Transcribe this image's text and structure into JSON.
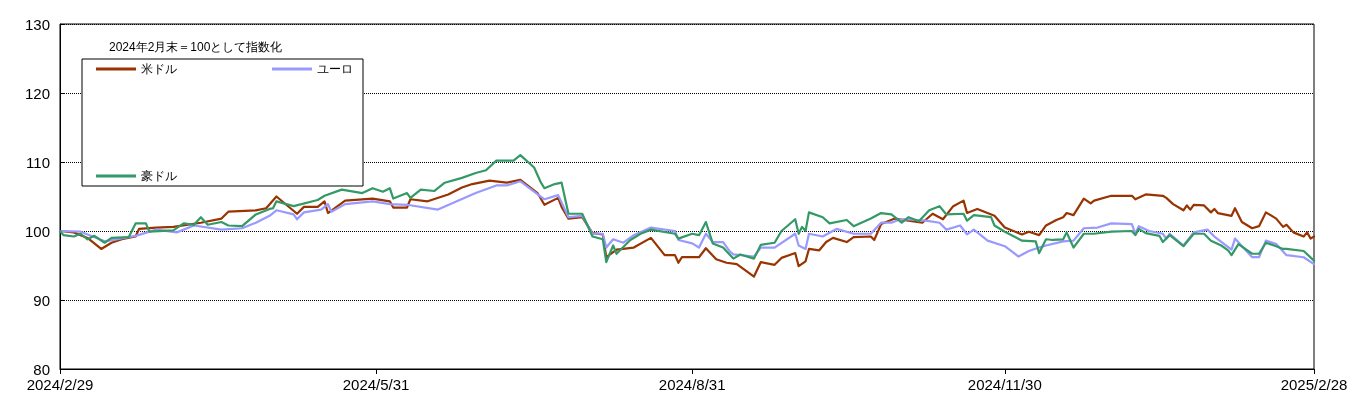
{
  "chart_data": {
    "type": "line",
    "legend_title": "2024年2月末＝100として指数化",
    "legend": "top left",
    "grid": "y",
    "marker": "none",
    "line_style": "solid",
    "xlim": [
      "2024-02-29",
      "2025-02-28"
    ],
    "xticks": [
      {
        "value": "2024-02-29",
        "label": "2024/2/29"
      },
      {
        "value": "2024-05-31",
        "label": "2024/5/31"
      },
      {
        "value": "2024-08-31",
        "label": "2024/8/31"
      },
      {
        "value": "2024-11-30",
        "label": "2024/11/30"
      },
      {
        "value": "2025-02-28",
        "label": "2025/2/28"
      }
    ],
    "ylim": [
      80,
      130
    ],
    "yticks": [
      80,
      90,
      100,
      110,
      120,
      130
    ],
    "series": [
      {
        "name": "米ドル",
        "color": "#993300",
        "x": [
          "2024-02-29",
          "2024-03-04",
          "2024-03-08",
          "2024-03-12",
          "2024-03-15",
          "2024-03-18",
          "2024-03-22",
          "2024-03-23",
          "2024-03-28",
          "2024-04-02",
          "2024-04-10",
          "2024-04-16",
          "2024-04-18",
          "2024-04-26",
          "2024-04-29",
          "2024-05-02",
          "2024-05-08",
          "2024-05-10",
          "2024-05-14",
          "2024-05-16",
          "2024-05-17",
          "2024-05-22",
          "2024-05-30",
          "2024-06-04",
          "2024-06-05",
          "2024-06-09",
          "2024-06-10",
          "2024-06-15",
          "2024-06-21",
          "2024-06-25",
          "2024-06-28",
          "2024-07-03",
          "2024-07-08",
          "2024-07-12",
          "2024-07-17",
          "2024-07-19",
          "2024-07-23",
          "2024-07-24",
          "2024-07-26",
          "2024-07-30",
          "2024-08-02",
          "2024-08-05",
          "2024-08-06",
          "2024-08-09",
          "2024-08-14",
          "2024-08-19",
          "2024-08-23",
          "2024-08-26",
          "2024-08-27",
          "2024-08-28",
          "2024-09-02",
          "2024-09-04",
          "2024-09-07",
          "2024-09-10",
          "2024-09-13",
          "2024-09-18",
          "2024-09-20",
          "2024-09-24",
          "2024-09-26",
          "2024-09-30",
          "2024-10-01",
          "2024-10-03",
          "2024-10-04",
          "2024-10-07",
          "2024-10-09",
          "2024-10-11",
          "2024-10-15",
          "2024-10-17",
          "2024-10-22",
          "2024-10-23",
          "2024-10-25",
          "2024-10-29",
          "2024-11-06",
          "2024-11-09",
          "2024-11-12",
          "2024-11-15",
          "2024-11-18",
          "2024-11-19",
          "2024-11-22",
          "2024-11-27",
          "2024-11-30",
          "2024-12-05",
          "2024-12-07",
          "2024-12-10",
          "2024-12-12",
          "2024-12-15",
          "2024-12-17",
          "2024-12-18",
          "2024-12-20",
          "2024-12-23",
          "2024-12-25",
          "2024-12-26",
          "2024-12-31",
          "2025-01-06",
          "2025-01-07",
          "2025-01-10",
          "2025-01-15",
          "2025-01-16",
          "2025-01-18",
          "2025-01-21",
          "2025-01-22",
          "2025-01-23",
          "2025-01-24",
          "2025-01-27",
          "2025-01-29",
          "2025-01-30",
          "2025-01-31",
          "2025-02-04",
          "2025-02-05",
          "2025-02-07",
          "2025-02-10",
          "2025-02-12",
          "2025-02-14",
          "2025-02-17",
          "2025-02-19",
          "2025-02-20",
          "2025-02-22",
          "2025-02-25",
          "2025-02-26",
          "2025-02-27",
          "2025-02-28"
        ],
        "values": [
          100,
          99.8,
          99,
          97.4,
          98.3,
          98.8,
          99.2,
          100.3,
          100.5,
          100.6,
          101.2,
          101.8,
          102.8,
          103,
          103.3,
          105,
          102.5,
          103.5,
          103.5,
          104.3,
          102.6,
          104.4,
          104.7,
          104.3,
          103.4,
          103.4,
          104.6,
          104.3,
          105.3,
          106.3,
          106.8,
          107.3,
          107,
          107.4,
          105.5,
          103.8,
          104.8,
          103.5,
          101.8,
          102,
          99.7,
          99.5,
          96.2,
          97.3,
          97.6,
          99,
          96.5,
          96.5,
          95.4,
          96.2,
          96.2,
          97.5,
          95.9,
          95.4,
          95.2,
          93.4,
          95.5,
          95.1,
          96.1,
          96.8,
          94.9,
          95.6,
          97.4,
          97.2,
          98.4,
          99,
          98.4,
          99.1,
          99.2,
          98.7,
          101,
          101.8,
          101.2,
          102.5,
          101.7,
          103.6,
          104.4,
          102.6,
          103.2,
          102.2,
          100.5,
          99.5,
          99.9,
          99.4,
          100.8,
          101.6,
          102,
          102.6,
          102.3,
          104.7,
          104,
          104.4,
          105.1,
          105.1,
          104.6,
          105.3,
          105.1,
          104.8,
          103.9,
          103,
          103.7,
          103.1,
          103.8,
          103.7,
          102.7,
          103.2,
          102.6,
          102.2,
          103.3,
          101.3,
          100.4,
          100.7,
          102.7,
          101.8,
          100.6,
          100.9,
          99.8,
          99.2,
          99.8,
          98.9,
          99.2
        ]
      },
      {
        "name": "ユーロ",
        "color": "#9999ff",
        "x": [
          "2024-02-29",
          "2024-03-06",
          "2024-03-13",
          "2024-03-22",
          "2024-03-28",
          "2024-04-03",
          "2024-04-08",
          "2024-04-16",
          "2024-04-22",
          "2024-04-26",
          "2024-04-30",
          "2024-05-02",
          "2024-05-07",
          "2024-05-08",
          "2024-05-10",
          "2024-05-15",
          "2024-05-17",
          "2024-05-18",
          "2024-05-22",
          "2024-05-30",
          "2024-06-04",
          "2024-06-09",
          "2024-06-18",
          "2024-06-23",
          "2024-06-29",
          "2024-07-05",
          "2024-07-08",
          "2024-07-12",
          "2024-07-19",
          "2024-07-23",
          "2024-07-26",
          "2024-07-30",
          "2024-08-02",
          "2024-08-05",
          "2024-08-06",
          "2024-08-08",
          "2024-08-11",
          "2024-08-14",
          "2024-08-19",
          "2024-08-26",
          "2024-08-27",
          "2024-08-31",
          "2024-09-02",
          "2024-09-04",
          "2024-09-06",
          "2024-09-09",
          "2024-09-11",
          "2024-09-12",
          "2024-09-18",
          "2024-09-20",
          "2024-09-24",
          "2024-09-30",
          "2024-10-01",
          "2024-10-03",
          "2024-10-04",
          "2024-10-08",
          "2024-10-12",
          "2024-10-17",
          "2024-10-22",
          "2024-10-25",
          "2024-10-28",
          "2024-10-30",
          "2024-11-01",
          "2024-11-07",
          "2024-11-11",
          "2024-11-13",
          "2024-11-17",
          "2024-11-19",
          "2024-11-21",
          "2024-11-25",
          "2024-11-30",
          "2024-12-04",
          "2024-12-07",
          "2024-12-10",
          "2024-12-12",
          "2024-12-17",
          "2024-12-20",
          "2024-12-23",
          "2024-12-27",
          "2024-12-31",
          "2025-01-06",
          "2025-01-07",
          "2025-01-08",
          "2025-01-11",
          "2025-01-15",
          "2025-01-16",
          "2025-01-17",
          "2025-01-21",
          "2025-01-24",
          "2025-01-28",
          "2025-01-30",
          "2025-02-04",
          "2025-02-05",
          "2025-02-10",
          "2025-02-12",
          "2025-02-14",
          "2025-02-17",
          "2025-02-20",
          "2025-02-25",
          "2025-02-28"
        ],
        "values": [
          100,
          99.9,
          98.5,
          99.3,
          100.2,
          99.8,
          100.8,
          100.2,
          100.4,
          101.2,
          102.2,
          103,
          102.4,
          101.7,
          102.7,
          103.1,
          103.9,
          102.8,
          103.9,
          104.3,
          103.9,
          103.8,
          103.1,
          104.2,
          105.5,
          106.6,
          106.6,
          107.2,
          104.6,
          105.2,
          102,
          102.2,
          99.6,
          99.6,
          97.6,
          98.8,
          98.3,
          99.4,
          100.5,
          100,
          98.7,
          98.2,
          97.6,
          99.6,
          98.4,
          98.4,
          97,
          96.6,
          96.3,
          97.6,
          97.6,
          99.6,
          97.9,
          97.4,
          99.6,
          99.2,
          100.3,
          99.6,
          99.6,
          101.2,
          101.2,
          101.6,
          101.7,
          101.5,
          101.2,
          100.2,
          100.8,
          99.5,
          100.2,
          98.6,
          97.8,
          96.3,
          97.1,
          97.6,
          97.9,
          98.5,
          98.6,
          100.4,
          100.5,
          101.1,
          101,
          99.6,
          100.7,
          100,
          99.6,
          98.9,
          99.6,
          97.9,
          99.8,
          100.2,
          99.2,
          97.3,
          98.9,
          96.2,
          96.2,
          98.6,
          98.1,
          96.5,
          96.2,
          95.2
        ]
      },
      {
        "name": "豪ドル",
        "color": "#339966",
        "x": [
          "2024-02-29",
          "2024-03-01",
          "2024-03-04",
          "2024-03-06",
          "2024-03-08",
          "2024-03-10",
          "2024-03-13",
          "2024-03-15",
          "2024-03-20",
          "2024-03-22",
          "2024-03-25",
          "2024-03-26",
          "2024-04-02",
          "2024-04-05",
          "2024-04-08",
          "2024-04-10",
          "2024-04-12",
          "2024-04-16",
          "2024-04-18",
          "2024-04-22",
          "2024-04-26",
          "2024-04-30",
          "2024-05-01",
          "2024-05-02",
          "2024-05-07",
          "2024-05-14",
          "2024-05-16",
          "2024-05-21",
          "2024-05-27",
          "2024-05-30",
          "2024-06-02",
          "2024-06-04",
          "2024-06-05",
          "2024-06-09",
          "2024-06-10",
          "2024-06-13",
          "2024-06-17",
          "2024-06-20",
          "2024-06-25",
          "2024-06-29",
          "2024-07-02",
          "2024-07-05",
          "2024-07-10",
          "2024-07-12",
          "2024-07-16",
          "2024-07-18",
          "2024-07-19",
          "2024-07-22",
          "2024-07-24",
          "2024-07-26",
          "2024-07-30",
          "2024-08-02",
          "2024-08-05",
          "2024-08-06",
          "2024-08-08",
          "2024-08-09",
          "2024-08-13",
          "2024-08-16",
          "2024-08-19",
          "2024-08-26",
          "2024-08-27",
          "2024-08-31",
          "2024-09-02",
          "2024-09-04",
          "2024-09-06",
          "2024-09-09",
          "2024-09-12",
          "2024-09-14",
          "2024-09-18",
          "2024-09-20",
          "2024-09-24",
          "2024-09-26",
          "2024-09-30",
          "2024-10-01",
          "2024-10-02",
          "2024-10-03",
          "2024-10-04",
          "2024-10-08",
          "2024-10-10",
          "2024-10-15",
          "2024-10-17",
          "2024-10-22",
          "2024-10-25",
          "2024-10-28",
          "2024-10-31",
          "2024-11-02",
          "2024-11-05",
          "2024-11-08",
          "2024-11-11",
          "2024-11-13",
          "2024-11-18",
          "2024-11-19",
          "2024-11-21",
          "2024-11-26",
          "2024-11-27",
          "2024-11-30",
          "2024-12-05",
          "2024-12-09",
          "2024-12-10",
          "2024-12-12",
          "2024-12-14",
          "2024-12-17",
          "2024-12-18",
          "2024-12-20",
          "2024-12-23",
          "2024-12-26",
          "2024-12-31",
          "2025-01-06",
          "2025-01-07",
          "2025-01-08",
          "2025-01-10",
          "2025-01-14",
          "2025-01-15",
          "2025-01-17",
          "2025-01-21",
          "2025-01-24",
          "2025-01-27",
          "2025-01-29",
          "2025-02-01",
          "2025-02-03",
          "2025-02-04",
          "2025-02-06",
          "2025-02-10",
          "2025-02-12",
          "2025-02-14",
          "2025-02-17",
          "2025-02-19",
          "2025-02-20",
          "2025-02-25",
          "2025-02-28"
        ],
        "values": [
          100,
          99.4,
          99.2,
          99.6,
          98.8,
          99.3,
          98.3,
          99,
          99.1,
          101.1,
          101.1,
          99.9,
          100.1,
          101.1,
          100.9,
          102,
          100.9,
          101.3,
          100.8,
          100.7,
          102.4,
          103.2,
          103.3,
          104.3,
          103.6,
          104.5,
          105.1,
          106,
          105.5,
          106.2,
          105.7,
          106.2,
          104.7,
          105.5,
          104.8,
          106,
          105.8,
          107,
          107.7,
          108.4,
          108.8,
          110.2,
          110.2,
          111,
          109.2,
          107,
          106.2,
          106.8,
          107,
          102.5,
          102.5,
          99.2,
          98.8,
          95.5,
          97.9,
          96.7,
          98.7,
          99.6,
          100.2,
          99.6,
          98.9,
          99.6,
          99.4,
          101.3,
          98.2,
          97.6,
          96,
          96.6,
          96,
          98,
          98.3,
          100,
          101.7,
          99.6,
          100.6,
          100,
          102.7,
          102,
          101.1,
          101.6,
          100.7,
          101.8,
          102.6,
          102.4,
          101.2,
          102,
          101.4,
          103,
          103.6,
          102.4,
          102.5,
          101.5,
          102.3,
          102,
          100.8,
          99.9,
          98.6,
          98.5,
          96.8,
          98.8,
          98.7,
          98.8,
          99.8,
          97.6,
          99.6,
          99.6,
          99.9,
          100,
          99.4,
          100.3,
          99.7,
          99.3,
          98.4,
          99.4,
          97.8,
          99.6,
          99.6,
          98.6,
          97.9,
          97.2,
          96.5,
          98.1,
          96.7,
          96.7,
          98.3,
          97.8,
          97.4,
          97.4,
          97.1,
          95.7
        ]
      }
    ]
  }
}
